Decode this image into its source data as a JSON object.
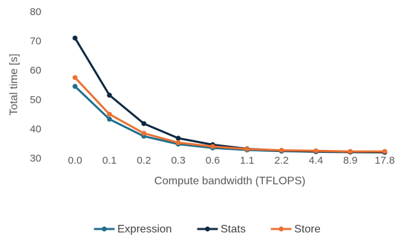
{
  "chart_data": {
    "type": "line",
    "title": "",
    "xlabel": "Compute bandwidth (TFLOPS)",
    "ylabel": "Total time [s]",
    "ylim": [
      30,
      80
    ],
    "yticks": [
      "30",
      "40",
      "50",
      "60",
      "70",
      "80"
    ],
    "grid": false,
    "legend_position": "bottom",
    "categories": [
      "0.0",
      "0.1",
      "0.2",
      "0.3",
      "0.6",
      "1.1",
      "2.2",
      "4.4",
      "8.9",
      "17.8"
    ],
    "series": [
      {
        "name": "Expression",
        "color": "#1f6e8c",
        "values": [
          54.5,
          43.3,
          37.5,
          34.8,
          33.5,
          32.8,
          32.4,
          32.2,
          32.1,
          32.0
        ]
      },
      {
        "name": "Stats",
        "color": "#0e2841",
        "values": [
          71.0,
          51.5,
          41.8,
          36.8,
          34.6,
          33.2,
          32.6,
          32.3,
          32.1,
          32.0
        ]
      },
      {
        "name": "Store",
        "color": "#e97132",
        "values": [
          57.5,
          45.0,
          38.5,
          35.3,
          34.0,
          33.1,
          32.7,
          32.5,
          32.3,
          32.3
        ]
      }
    ]
  }
}
